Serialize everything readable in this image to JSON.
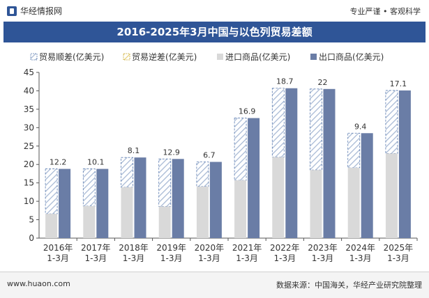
{
  "header": {
    "brand": "华经情报网",
    "tagline": "专业严谨 • 客观科学"
  },
  "title": "2016-2025年3月中国与以色列贸易差额",
  "footer": {
    "website": "www.huaon.com",
    "source": "数据来源：中国海关，华经产业研究院整理"
  },
  "colors": {
    "title_bg": "#2f5597",
    "import_bar": "#d9d9d9",
    "export_bar": "#6a7da6",
    "surplus_hatch": "#a6b8d4",
    "deficit_hatch": "#e8d27a"
  },
  "chart_data": {
    "type": "bar",
    "categories": [
      "2016年\n1-3月",
      "2017年\n1-3月",
      "2018年\n1-3月",
      "2019年\n1-3月",
      "2020年\n1-3月",
      "2021年\n1-3月",
      "2022年\n1-3月",
      "2023年\n1-3月",
      "2024年\n1-3月",
      "2025年\n1-3月"
    ],
    "series": [
      {
        "name": "贸易顺差(亿美元)",
        "values": [
          12.2,
          10.1,
          8.1,
          12.9,
          6.7,
          16.9,
          18.7,
          22,
          9.4,
          17.1
        ]
      },
      {
        "name": "贸易逆差(亿美元)",
        "values": [
          0,
          0,
          0,
          0,
          0,
          0,
          0,
          0,
          0,
          0
        ]
      },
      {
        "name": "进口商品(亿美元)",
        "values": [
          6.6,
          8.7,
          13.8,
          8.6,
          14.0,
          15.7,
          22.0,
          18.5,
          19.1,
          23.0
        ]
      },
      {
        "name": "出口商品(亿美元)",
        "values": [
          18.8,
          18.8,
          21.9,
          21.5,
          20.7,
          32.6,
          40.7,
          40.5,
          28.5,
          40.1
        ]
      }
    ],
    "data_labels": [
      "12.2",
      "10.1",
      "8.1",
      "12.9",
      "6.7",
      "16.9",
      "18.7",
      "22",
      "9.4",
      "17.1"
    ],
    "y_ticks": [
      0,
      5,
      10,
      15,
      20,
      25,
      30,
      35,
      40,
      45
    ],
    "ylim": [
      0,
      45
    ],
    "legend_position": "top-left",
    "grid": false
  }
}
